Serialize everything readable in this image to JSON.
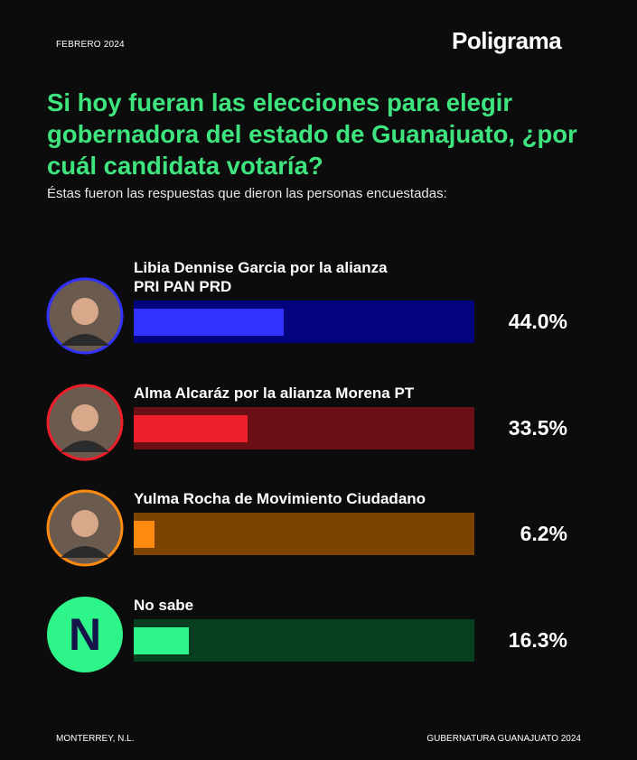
{
  "chart_data": {
    "type": "bar",
    "date": "FEBRERO 2024",
    "brand": "Poligrama",
    "title": "Si hoy fueran las elecciones para elegir gobernadora del estado de Guanajuato, ¿por cuál candidata votaría?",
    "subtitle": "Éstas fueron las respuestas que dieron las personas encuestadas:",
    "categories": [
      "Libia Dennise Garcia por la alianza\nPRI PAN PRD",
      "Alma Alcaráz por la alianza Morena PT",
      "Yulma Rocha de Movimiento Ciudadano",
      "No sabe"
    ],
    "values": [
      44.0,
      33.5,
      6.2,
      16.3
    ],
    "value_labels": [
      "44.0%",
      "33.5%",
      "6.2%",
      "16.3%"
    ],
    "colors": [
      "#3232ff",
      "#ee1f2a",
      "#ff8a10",
      "#2ef58a"
    ],
    "track_colors": [
      "#03037e",
      "#6a0f14",
      "#7d4300",
      "#053f20"
    ],
    "icon_text": "N",
    "xlim": [
      0,
      100
    ],
    "footer_left": "MONTERREY, N.L.",
    "footer_right": "GUBERNATURA GUANAJUATO 2024"
  }
}
